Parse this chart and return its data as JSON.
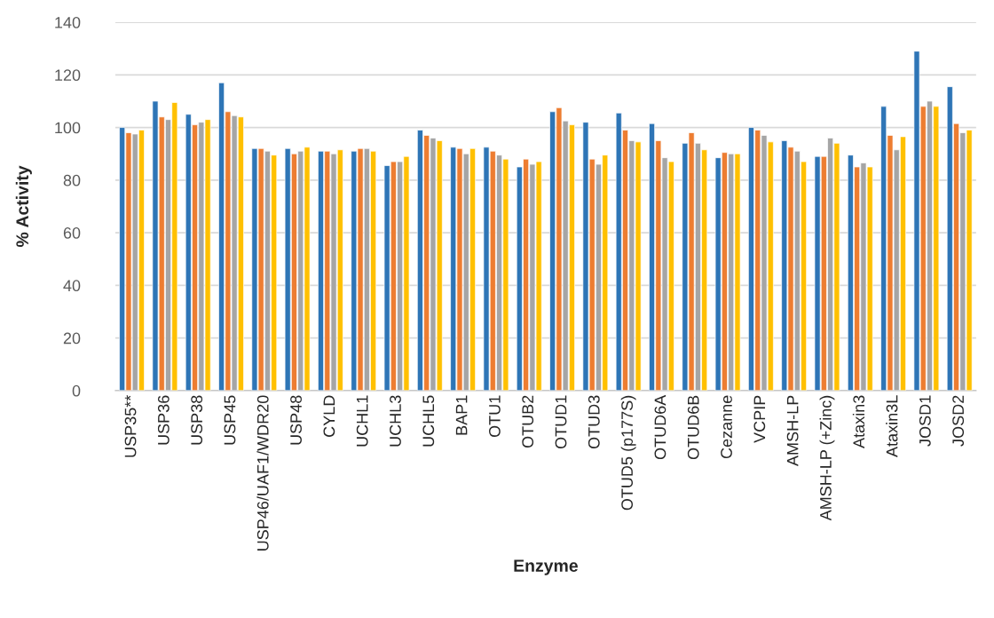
{
  "chart_data": {
    "type": "bar",
    "xlabel": "Enzyme",
    "ylabel": "% Activity",
    "categories": [
      "USP35**",
      "USP36",
      "USP38",
      "USP45",
      "USP46/UAF1/WDR20",
      "USP48",
      "CYLD",
      "UCHL1",
      "UCHL3",
      "UCHL5",
      "BAP1",
      "OTU1",
      "OTUB2",
      "OTUD1",
      "OTUD3",
      "OTUD5 (p177S)",
      "OTUD6A",
      "OTUD6B",
      "Cezanne",
      "VCPIP",
      "AMSH-LP",
      "AMSH-LP (+Zinc)",
      "Ataxin3",
      "Ataxin3L",
      "JOSD1",
      "JOSD2"
    ],
    "series": [
      {
        "color": "#2e75b6",
        "values": [
          100,
          110,
          105,
          117,
          92,
          92,
          91,
          91,
          85.5,
          99,
          92.5,
          92.5,
          85,
          106,
          102,
          105.5,
          101.5,
          94,
          88.5,
          100,
          95,
          89,
          89.5,
          108,
          129,
          115.5
        ]
      },
      {
        "color": "#ed7d31",
        "values": [
          98,
          104,
          101,
          106,
          92,
          90,
          91,
          92,
          87,
          97,
          92,
          91,
          88,
          107.5,
          88,
          99,
          95,
          98,
          90.5,
          99,
          92.5,
          89,
          85,
          97,
          108,
          101.5
        ]
      },
      {
        "color": "#a5a5a5",
        "values": [
          97.5,
          103,
          102,
          104.5,
          91,
          91,
          90,
          92,
          87,
          96,
          90,
          89.5,
          86,
          102.5,
          86,
          95,
          88.5,
          94,
          90,
          97,
          91,
          96,
          86.5,
          91.5,
          110,
          98
        ]
      },
      {
        "color": "#ffc000",
        "values": [
          99,
          109.5,
          103,
          104,
          89.5,
          92.5,
          91.5,
          91,
          89,
          95,
          92,
          88,
          87,
          101,
          89.5,
          94.5,
          87,
          91.5,
          90,
          94.5,
          87,
          94,
          85,
          96.5,
          108,
          99
        ]
      }
    ],
    "ylim": [
      0,
      140
    ],
    "yticks": [
      0,
      20,
      40,
      60,
      80,
      100,
      120,
      140
    ],
    "grid": "y",
    "legend": false
  }
}
